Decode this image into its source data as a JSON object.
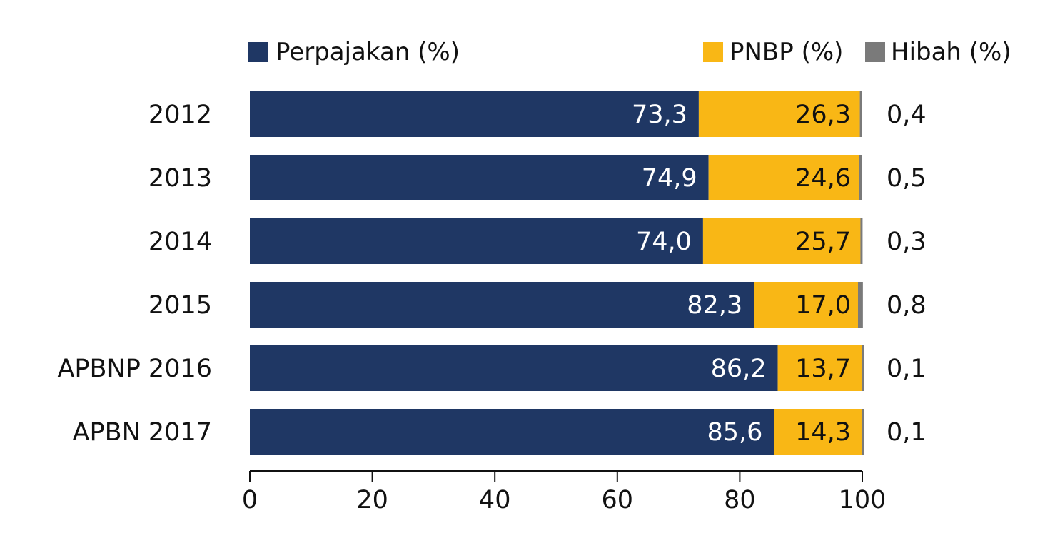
{
  "chart_data": {
    "type": "bar",
    "orientation": "horizontal",
    "stacked": true,
    "title": "",
    "xlabel": "",
    "ylabel": "",
    "xlim": [
      0,
      100
    ],
    "xticks": [
      "0",
      "20",
      "40",
      "60",
      "80",
      "100"
    ],
    "xtick_values": [
      0,
      20,
      40,
      60,
      80,
      100
    ],
    "legend_placement": "top",
    "grid": false,
    "categories": [
      "2012",
      "2013",
      "2014",
      "2015",
      "APBNP 2016",
      "APBN 2017"
    ],
    "series": [
      {
        "name": "Perpajakan (%)",
        "color": "#1f3764",
        "label_color": "#ffffff",
        "values": [
          73.3,
          74.9,
          74.0,
          82.3,
          86.2,
          85.6
        ],
        "labels": [
          "73,3",
          "74,9",
          "74,0",
          "82,3",
          "86,2",
          "85,6"
        ]
      },
      {
        "name": "PNBP (%)",
        "color": "#f9b715",
        "label_color": "#111111",
        "values": [
          26.3,
          24.6,
          25.7,
          17.0,
          13.7,
          14.3
        ],
        "labels": [
          "26,3",
          "24,6",
          "25,7",
          "17,0",
          "13,7",
          "14,3"
        ]
      },
      {
        "name": "Hibah (%)",
        "color": "#7a7a7a",
        "label_color": "#111111",
        "values": [
          0.4,
          0.5,
          0.3,
          0.8,
          0.1,
          0.1
        ],
        "labels": [
          "0,4",
          "0,5",
          "0,3",
          "0,8",
          "0,1",
          "0,1"
        ]
      }
    ]
  }
}
